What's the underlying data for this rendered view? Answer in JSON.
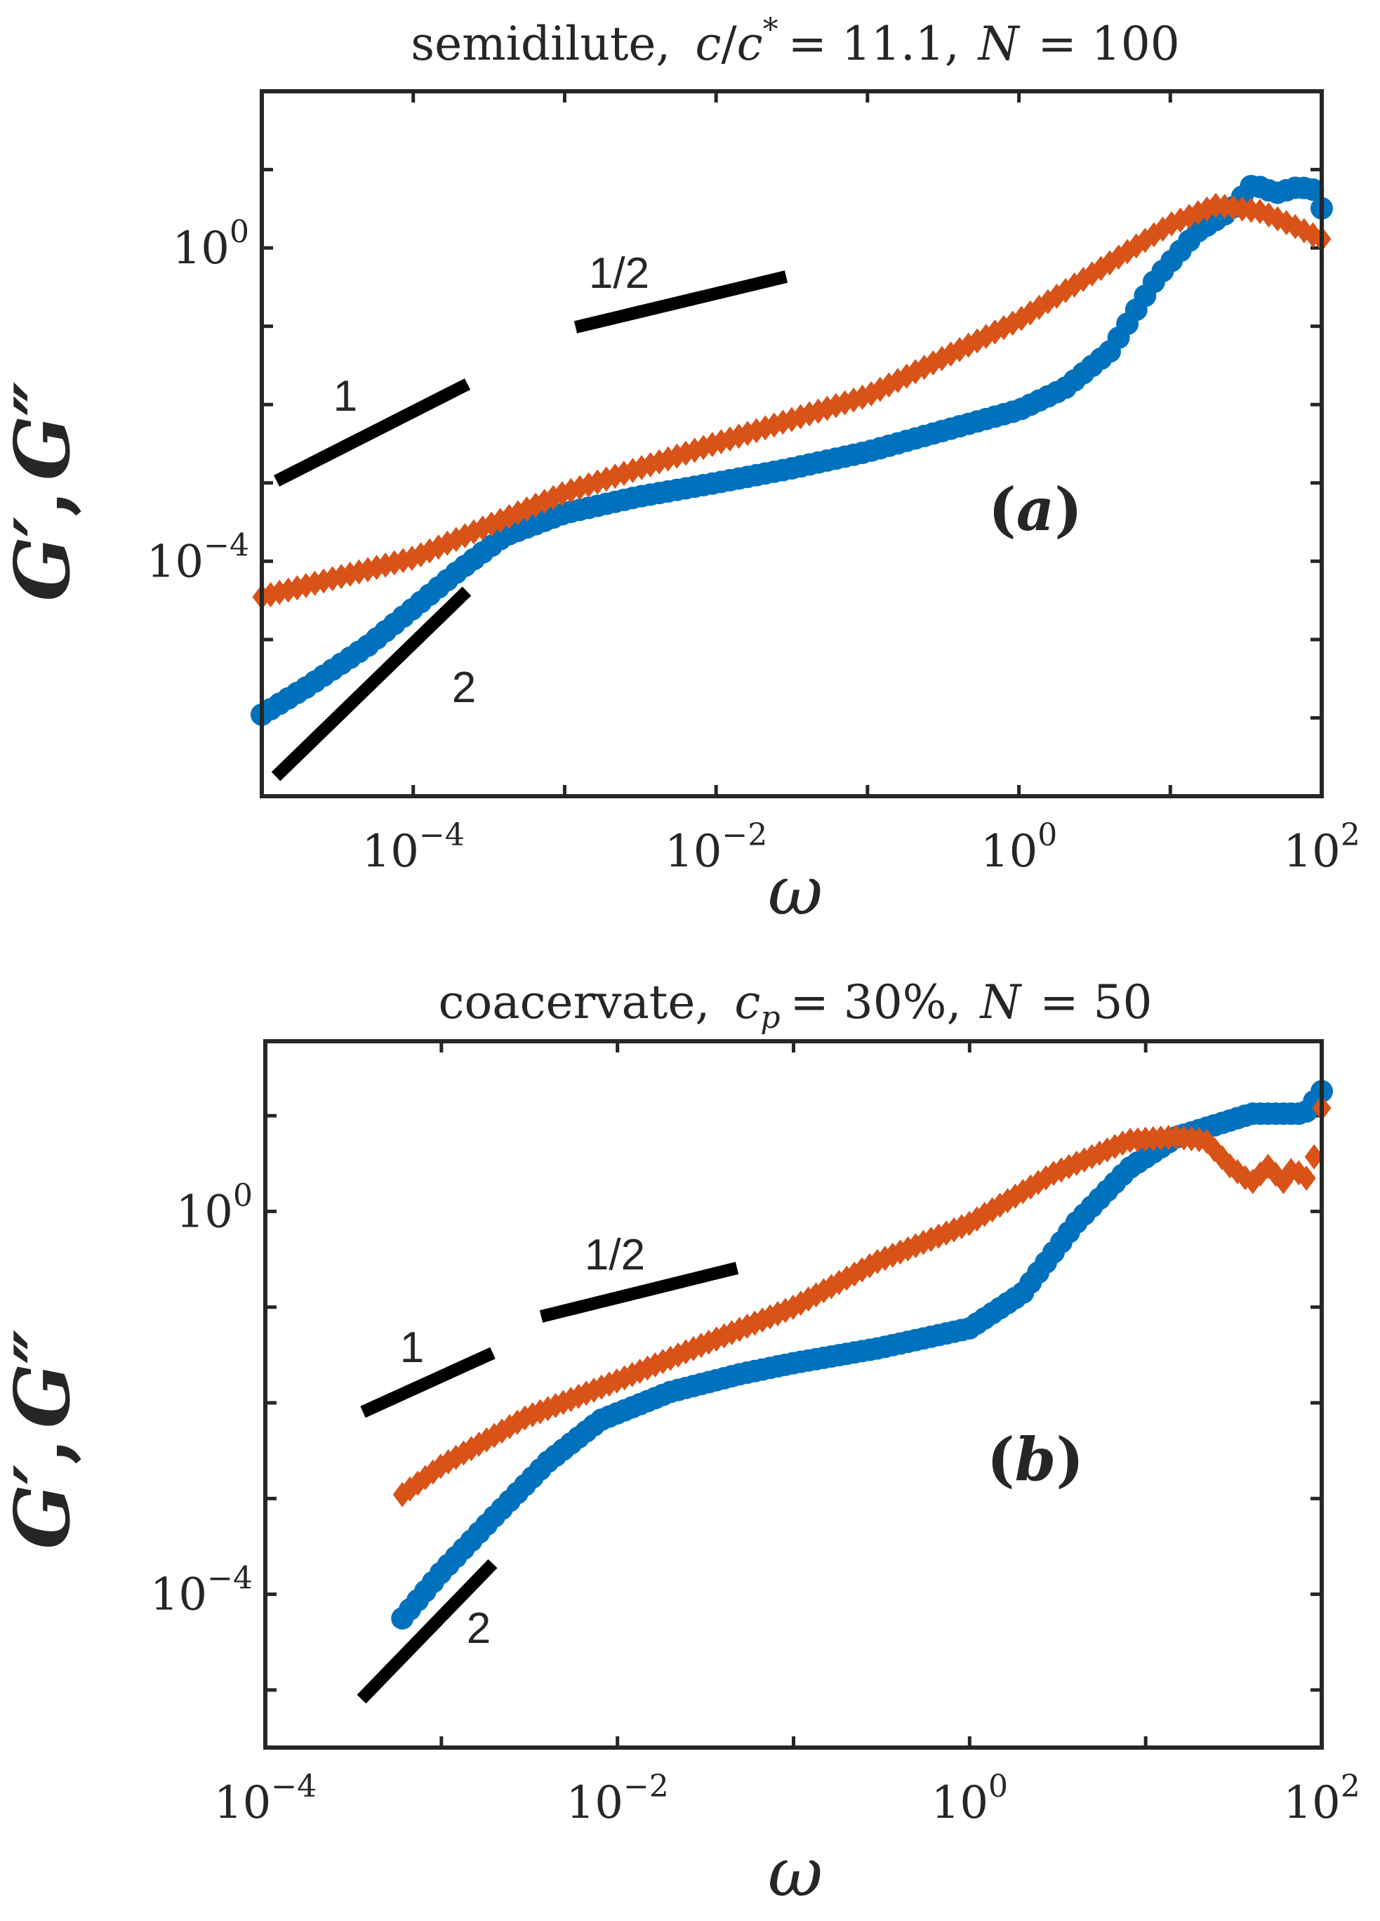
{
  "chart_data": [
    {
      "type": "scatter",
      "panel_label": "a",
      "title": {
        "prefix": "semidilute,",
        "c": "c",
        "slash": "/",
        "c2": "c",
        "star": "*",
        "eq1": "= 11.1,",
        "N": "N",
        "eq2": "= 100"
      },
      "xlabel": "ω",
      "ylabel": {
        "G1": "G",
        "p1": "′",
        "comma": ",",
        "G2": "G",
        "p2": "″"
      },
      "xscale": "log",
      "yscale": "log",
      "xlim": [
        1e-05,
        100
      ],
      "ylim": [
        1e-07,
        100
      ],
      "xticks": [
        0.0001,
        0.01,
        1,
        100
      ],
      "xtick_labels": [
        {
          "base": "10",
          "exp": "−4"
        },
        {
          "base": "10",
          "exp": "−2"
        },
        {
          "base": "10",
          "exp": "0"
        },
        {
          "base": "10",
          "exp": "2"
        }
      ],
      "yticks": [
        0.0001,
        1
      ],
      "ytick_labels": [
        {
          "base": "10",
          "exp": "−4"
        },
        {
          "base": "10",
          "exp": "0"
        }
      ],
      "series": [
        {
          "name": "G'",
          "marker": "circle",
          "color": "#0072BD",
          "points": [
            [
              1e-05,
              1.1e-06
            ],
            [
              2e-05,
              2.5e-06
            ],
            [
              5e-05,
              8.3e-06
            ],
            [
              0.0001,
              2.5e-05
            ],
            [
              0.0002,
              7.6e-05
            ],
            [
              0.0004,
              0.00021
            ],
            [
              0.001,
              0.00041
            ],
            [
              0.003,
              0.00066
            ],
            [
              0.01,
              0.001
            ],
            [
              0.03,
              0.0015
            ],
            [
              0.1,
              0.0025
            ],
            [
              0.3,
              0.0045
            ],
            [
              1,
              0.0085
            ],
            [
              2,
              0.016
            ],
            [
              4,
              0.048
            ],
            [
              8,
              0.4
            ],
            [
              15,
              1.6
            ],
            [
              25,
              3.0
            ],
            [
              35,
              6.5
            ],
            [
              50,
              5.0
            ],
            [
              70,
              6.0
            ],
            [
              90,
              5.5
            ],
            [
              100,
              3.2
            ]
          ]
        },
        {
          "name": "G''",
          "marker": "diamond",
          "color": "#D95319",
          "points": [
            [
              1e-05,
              3.5e-05
            ],
            [
              0.0001,
              0.00011
            ],
            [
              0.001,
              0.00075
            ],
            [
              0.01,
              0.0032
            ],
            [
              0.1,
              0.013
            ],
            [
              1,
              0.12
            ],
            [
              4,
              0.65
            ],
            [
              10,
              2.0
            ],
            [
              20,
              3.5
            ],
            [
              40,
              2.9
            ],
            [
              70,
              1.8
            ],
            [
              100,
              1.3
            ]
          ]
        }
      ],
      "slope_annotations": [
        {
          "label": "1/2",
          "slope": 0.5
        },
        {
          "label": "1",
          "slope": 1
        },
        {
          "label": "2",
          "slope": 2
        }
      ]
    },
    {
      "type": "scatter",
      "panel_label": "b",
      "title": {
        "prefix": "coacervate,",
        "c": "c",
        "sub": "p",
        "eq1": "= 30%,",
        "N": "N",
        "eq2": "= 50"
      },
      "xlabel": "ω",
      "ylabel": {
        "G1": "G",
        "p1": "′",
        "comma": ",",
        "G2": "G",
        "p2": "″"
      },
      "xscale": "log",
      "yscale": "log",
      "xlim": [
        0.0001,
        100
      ],
      "ylim": [
        2.5e-06,
        60
      ],
      "xticks": [
        0.0001,
        0.01,
        1,
        100
      ],
      "xtick_labels": [
        {
          "base": "10",
          "exp": "−4"
        },
        {
          "base": "10",
          "exp": "−2"
        },
        {
          "base": "10",
          "exp": "0"
        },
        {
          "base": "10",
          "exp": "2"
        }
      ],
      "yticks": [
        0.0001,
        1
      ],
      "ytick_labels": [
        {
          "base": "10",
          "exp": "−4"
        },
        {
          "base": "10",
          "exp": "0"
        }
      ],
      "series": [
        {
          "name": "G'",
          "marker": "circle",
          "color": "#0072BD",
          "points": [
            [
              0.0006,
              5.6e-05
            ],
            [
              0.001,
              0.00017
            ],
            [
              0.002,
              0.00065
            ],
            [
              0.004,
              0.0024
            ],
            [
              0.008,
              0.0066
            ],
            [
              0.02,
              0.013
            ],
            [
              0.05,
              0.02
            ],
            [
              0.1,
              0.026
            ],
            [
              0.3,
              0.037
            ],
            [
              1,
              0.06
            ],
            [
              2,
              0.14
            ],
            [
              4,
              0.75
            ],
            [
              8,
              2.8
            ],
            [
              15,
              6.0
            ],
            [
              25,
              8.0
            ],
            [
              40,
              10.5
            ],
            [
              60,
              10.5
            ],
            [
              80,
              10.5
            ],
            [
              100,
              18
            ]
          ]
        },
        {
          "name": "G''",
          "marker": "diamond",
          "color": "#D95319",
          "points": [
            [
              0.0006,
              0.0011
            ],
            [
              0.001,
              0.0022
            ],
            [
              0.003,
              0.007
            ],
            [
              0.01,
              0.017
            ],
            [
              0.03,
              0.04
            ],
            [
              0.1,
              0.1
            ],
            [
              0.3,
              0.3
            ],
            [
              1,
              0.75
            ],
            [
              3,
              2.5
            ],
            [
              8,
              5.5
            ],
            [
              15,
              6.0
            ],
            [
              22,
              5.5
            ],
            [
              30,
              3.0
            ],
            [
              40,
              2.0
            ],
            [
              50,
              3.0
            ],
            [
              60,
              2.0
            ],
            [
              70,
              3.0
            ],
            [
              80,
              2.0
            ],
            [
              90,
              3.5
            ],
            [
              100,
              12
            ]
          ]
        }
      ],
      "slope_annotations": [
        {
          "label": "1/2",
          "slope": 0.5
        },
        {
          "label": "1",
          "slope": 1
        },
        {
          "label": "2",
          "slope": 2
        }
      ]
    }
  ]
}
